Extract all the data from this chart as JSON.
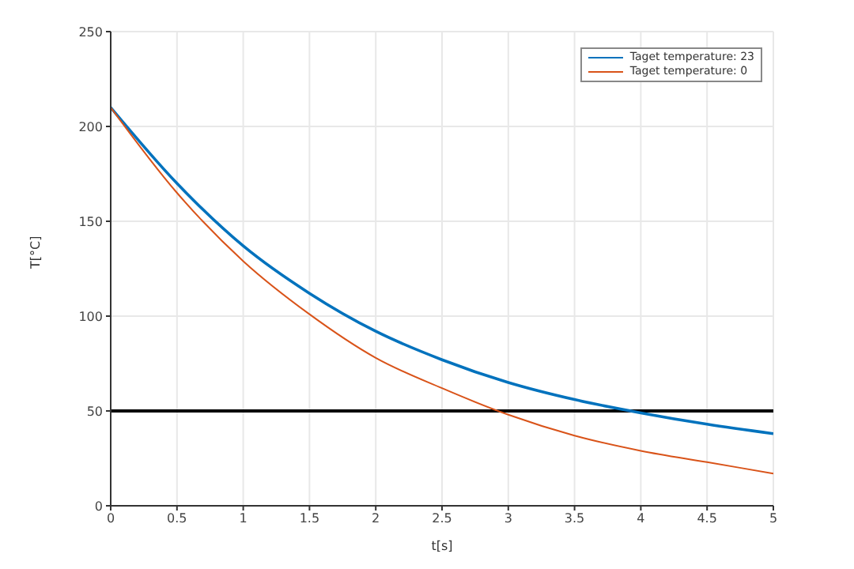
{
  "chart_data": {
    "type": "line",
    "xlabel": "t[s]",
    "ylabel": "T[°C]",
    "x": [
      0,
      0.5,
      1,
      1.5,
      2,
      2.5,
      3,
      3.5,
      4,
      4.5,
      5
    ],
    "series": [
      {
        "name": "Taget temperature: 23",
        "color": "#0072bd",
        "values": [
          210,
          170,
          137,
          112,
          92,
          77,
          65,
          56,
          49,
          43,
          38
        ]
      },
      {
        "name": "Taget temperature: 0",
        "color": "#d95319",
        "values": [
          210,
          165,
          129,
          101,
          78,
          62,
          48,
          37,
          29,
          23,
          17
        ]
      }
    ],
    "xlim": [
      0,
      5
    ],
    "xticks": [
      0,
      0.5,
      1,
      1.5,
      2,
      2.5,
      3,
      3.5,
      4,
      4.5,
      5
    ],
    "ylim": [
      0,
      250
    ],
    "yticks": [
      0,
      50,
      100,
      150,
      200,
      250
    ],
    "ref_lines": [
      {
        "axis": "y",
        "value": 50,
        "color": "#000000"
      }
    ],
    "grid": true,
    "legend": "top right",
    "marker": "none",
    "line_style": "solid"
  }
}
